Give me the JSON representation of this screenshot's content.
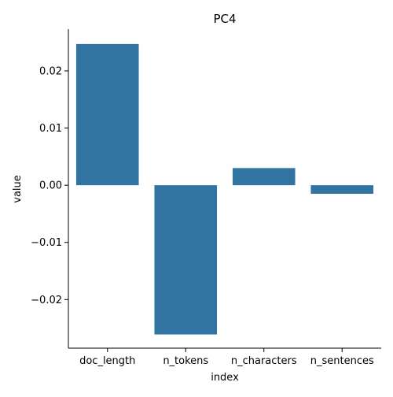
{
  "chart_data": {
    "type": "bar",
    "title": "PC4",
    "xlabel": "index",
    "ylabel": "value",
    "categories": [
      "doc_length",
      "n_tokens",
      "n_characters",
      "n_sentences"
    ],
    "values": [
      0.0247,
      -0.0261,
      0.003,
      -0.0015
    ],
    "ylim": [
      -0.0285,
      0.0273
    ],
    "yticks": [
      -0.02,
      -0.01,
      0.0,
      0.01,
      0.02
    ],
    "ytick_labels": [
      "−0.02",
      "−0.01",
      "0.00",
      "0.01",
      "0.02"
    ],
    "grid": false,
    "legend": "none",
    "bar_color": "#3274a1",
    "axis_color": "#000000"
  }
}
